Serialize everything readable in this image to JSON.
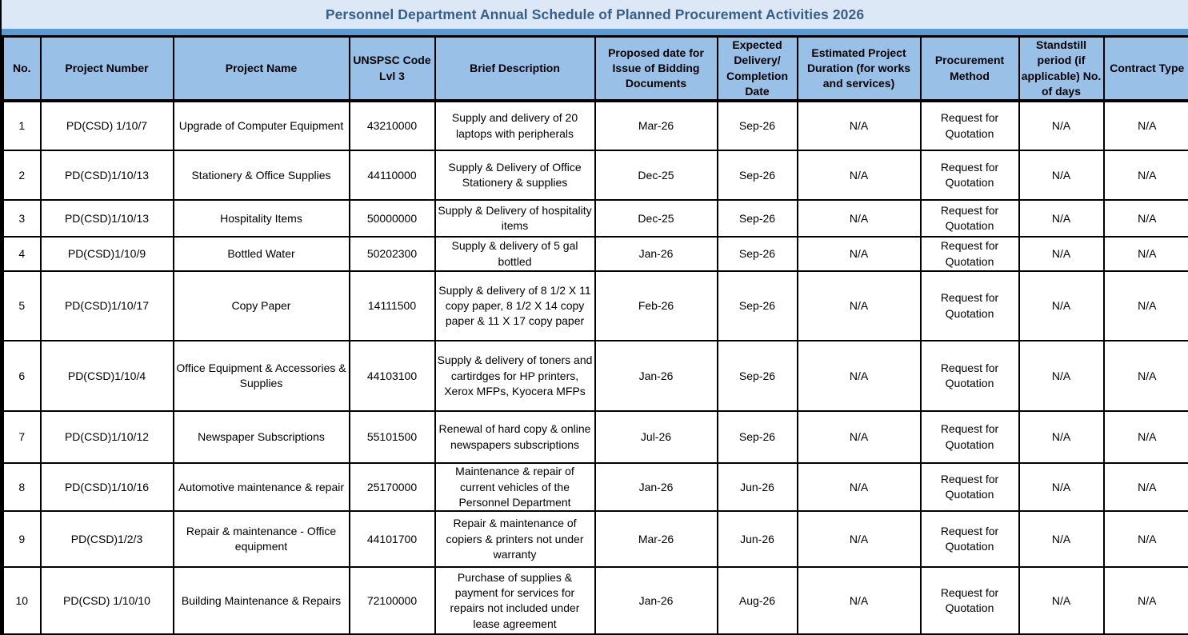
{
  "title": "Personnel Department Annual Schedule of Planned Procurement Activities 2026",
  "colors": {
    "title_bar_bg": "#dce8f5",
    "title_text": "#35608d",
    "band": "#5b9bd5",
    "header_bg": "#99c0e6",
    "border": "#000000"
  },
  "table": {
    "columns": [
      {
        "key": "no",
        "label": "No."
      },
      {
        "key": "project_number",
        "label": "Project Number"
      },
      {
        "key": "project_name",
        "label": "Project Name"
      },
      {
        "key": "unspsc_code",
        "label": "UNSPSC Code Lvl 3"
      },
      {
        "key": "brief_description",
        "label": "Brief Description"
      },
      {
        "key": "proposed_date",
        "label": "Proposed date for Issue of Bidding Documents"
      },
      {
        "key": "expected_delivery",
        "label": "Expected Delivery/ Completion Date"
      },
      {
        "key": "estimated_duration",
        "label": "Estimated Project Duration (for works and services)"
      },
      {
        "key": "procurement_method",
        "label": "Procurement Method"
      },
      {
        "key": "standstill_period",
        "label": "Standstill period (if applicable) No. of days"
      },
      {
        "key": "contract_type",
        "label": "Contract Type"
      }
    ],
    "rows": [
      {
        "no": "1",
        "project_number": "PD(CSD) 1/10/7",
        "project_name": "Upgrade of Computer Equipment",
        "unspsc_code": "43210000",
        "brief_description": "Supply and delivery of 20 laptops with peripherals",
        "proposed_date": "Mar-26",
        "expected_delivery": "Sep-26",
        "estimated_duration": "N/A",
        "procurement_method": "Request for Quotation",
        "standstill_period": "N/A",
        "contract_type": "N/A"
      },
      {
        "no": "2",
        "project_number": "PD(CSD)1/10/13",
        "project_name": "Stationery & Office Supplies",
        "unspsc_code": "44110000",
        "brief_description": "Supply & Delivery of  Office Stationery & supplies",
        "proposed_date": "Dec-25",
        "expected_delivery": "Sep-26",
        "estimated_duration": "N/A",
        "procurement_method": "Request for Quotation",
        "standstill_period": "N/A",
        "contract_type": "N/A"
      },
      {
        "no": "3",
        "project_number": "PD(CSD)1/10/13",
        "project_name": "Hospitality Items",
        "unspsc_code": "50000000",
        "brief_description": "Supply & Delivery of hospitality items",
        "proposed_date": "Dec-25",
        "expected_delivery": "Sep-26",
        "estimated_duration": "N/A",
        "procurement_method": "Request for Quotation",
        "standstill_period": "N/A",
        "contract_type": "N/A"
      },
      {
        "no": "4",
        "project_number": "PD(CSD)1/10/9",
        "project_name": "Bottled Water",
        "unspsc_code": "50202300",
        "brief_description": "Supply & delivery of 5 gal bottled",
        "proposed_date": "Jan-26",
        "expected_delivery": "Sep-26",
        "estimated_duration": "N/A",
        "procurement_method": "Request for Quotation",
        "standstill_period": "N/A",
        "contract_type": "N/A"
      },
      {
        "no": "5",
        "project_number": "PD(CSD)1/10/17",
        "project_name": "Copy Paper",
        "unspsc_code": "14111500",
        "brief_description": "Supply & delivery of 8 1/2 X 11 copy paper, 8 1/2 X 14 copy paper & 11 X 17 copy paper",
        "proposed_date": "Feb-26",
        "expected_delivery": "Sep-26",
        "estimated_duration": "N/A",
        "procurement_method": "Request for Quotation",
        "standstill_period": "N/A",
        "contract_type": "N/A"
      },
      {
        "no": "6",
        "project_number": "PD(CSD)1/10/4",
        "project_name": "Office Equipment & Accessories & Supplies",
        "unspsc_code": "44103100",
        "brief_description": "Supply & delivery of toners and cartirdges for HP printers, Xerox MFPs, Kyocera MFPs",
        "proposed_date": "Jan-26",
        "expected_delivery": "Sep-26",
        "estimated_duration": "N/A",
        "procurement_method": "Request for Quotation",
        "standstill_period": "N/A",
        "contract_type": "N/A"
      },
      {
        "no": "7",
        "project_number": "PD(CSD)1/10/12",
        "project_name": "Newspaper Subscriptions",
        "unspsc_code": "55101500",
        "brief_description": "Renewal of hard copy & online newspapers subscriptions",
        "proposed_date": "Jul-26",
        "expected_delivery": "Sep-26",
        "estimated_duration": "N/A",
        "procurement_method": "Request for Quotation",
        "standstill_period": "N/A",
        "contract_type": "N/A"
      },
      {
        "no": "8",
        "project_number": "PD(CSD)1/10/16",
        "project_name": "Automotive maintenance & repair",
        "unspsc_code": "25170000",
        "brief_description": "Maintenance & repair of current vehicles of the Personnel Department",
        "proposed_date": "Jan-26",
        "expected_delivery": "Jun-26",
        "estimated_duration": "N/A",
        "procurement_method": "Request for Quotation",
        "standstill_period": "N/A",
        "contract_type": "N/A"
      },
      {
        "no": "9",
        "project_number": "PD(CSD)1/2/3",
        "project_name": "Repair & maintenance - Office equipment",
        "unspsc_code": "44101700",
        "brief_description": "Repair & maintenance of copiers & printers not under warranty",
        "proposed_date": "Mar-26",
        "expected_delivery": "Jun-26",
        "estimated_duration": "N/A",
        "procurement_method": "Request for Quotation",
        "standstill_period": "N/A",
        "contract_type": "N/A"
      },
      {
        "no": "10",
        "project_number": "PD(CSD) 1/10/10",
        "project_name": "Building Maintenance & Repairs",
        "unspsc_code": "72100000",
        "brief_description": "Purchase of supplies & payment for services for repairs not included under lease agreement",
        "proposed_date": "Jan-26",
        "expected_delivery": "Aug-26",
        "estimated_duration": "N/A",
        "procurement_method": "Request for Quotation",
        "standstill_period": "N/A",
        "contract_type": "N/A"
      }
    ]
  }
}
